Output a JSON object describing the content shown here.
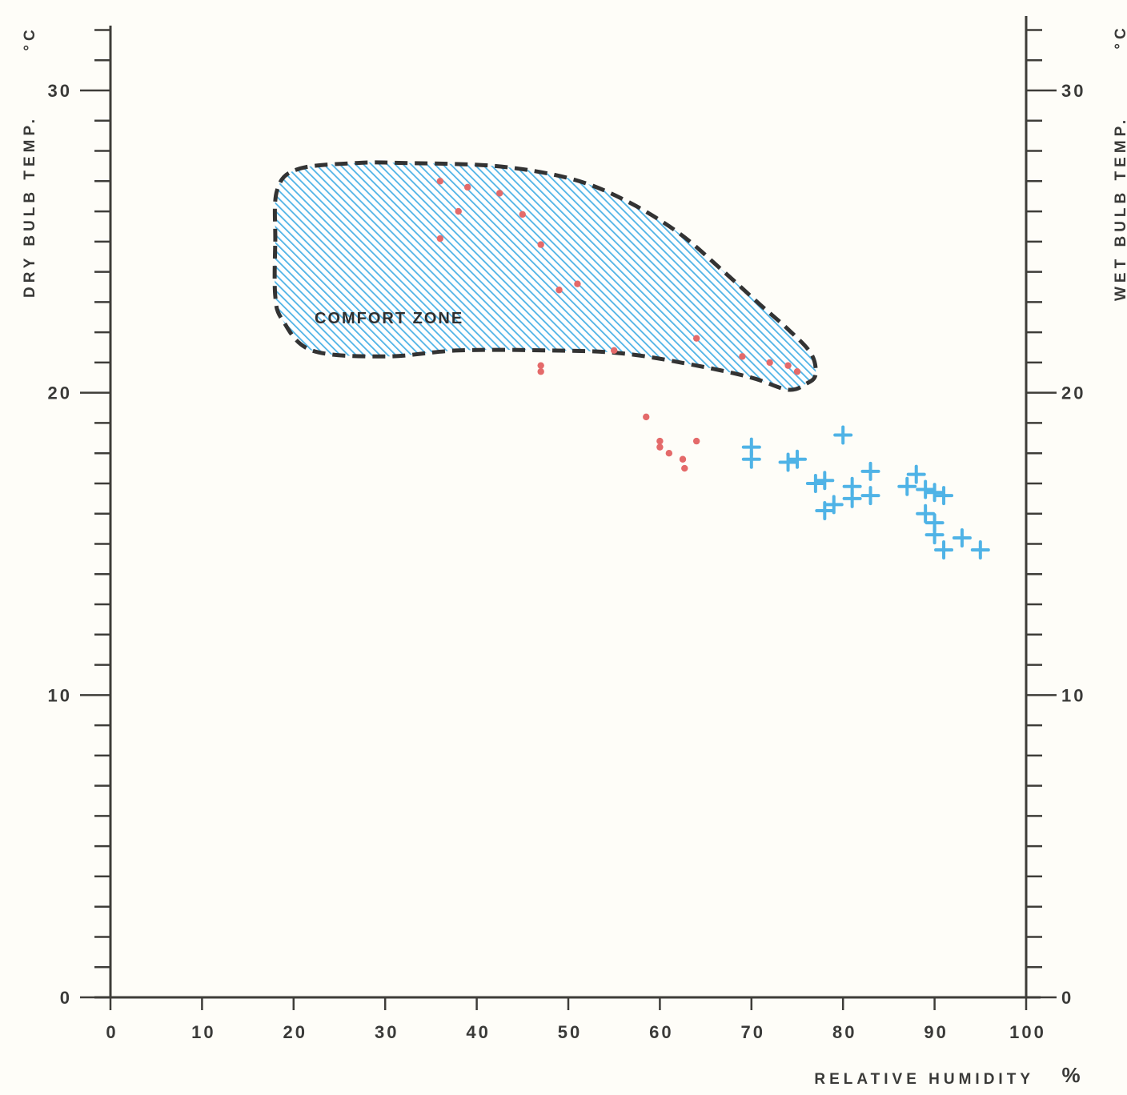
{
  "chart_data": {
    "type": "scatter",
    "title": "",
    "xlabel": "RELATIVE HUMIDITY",
    "xlabel_unit": "%",
    "ylabel_left": "DRY BULB TEMP.",
    "ylabel_left_unit": "°C",
    "ylabel_right": "WET BULB TEMP.",
    "ylabel_right_unit": "°C",
    "xlim": [
      0,
      100
    ],
    "ylim": [
      0,
      32
    ],
    "x_ticks": [
      0,
      10,
      20,
      30,
      40,
      50,
      60,
      70,
      80,
      90,
      100
    ],
    "x_tick_labels": [
      "0",
      "10",
      "20",
      "30",
      "40",
      "50",
      "60",
      "70",
      "80",
      "90",
      "100"
    ],
    "y_left_ticks": [
      0,
      10,
      20,
      30
    ],
    "y_left_tick_labels": [
      "0",
      "10",
      "20",
      "30"
    ],
    "y_right_ticks": [
      0,
      10,
      20,
      30
    ],
    "y_right_tick_labels": [
      "0",
      "10",
      "20",
      "30"
    ],
    "grid": false,
    "zone": {
      "label": "COMFORT ZONE",
      "style": "dashed outline with blue hatching",
      "boundary": [
        [
          18.0,
          25.0
        ],
        [
          18.2,
          26.7
        ],
        [
          20.5,
          27.4
        ],
        [
          27.0,
          27.6
        ],
        [
          32.0,
          27.6
        ],
        [
          42.0,
          27.5
        ],
        [
          50.0,
          27.1
        ],
        [
          56.0,
          26.4
        ],
        [
          62.0,
          25.3
        ],
        [
          67.0,
          24.0
        ],
        [
          71.0,
          22.9
        ],
        [
          74.0,
          22.1
        ],
        [
          76.5,
          21.3
        ],
        [
          77.0,
          20.6
        ],
        [
          76.0,
          20.3
        ],
        [
          74.0,
          20.1
        ],
        [
          70.0,
          20.5
        ],
        [
          64.0,
          20.9
        ],
        [
          56.0,
          21.3
        ],
        [
          48.0,
          21.4
        ],
        [
          38.0,
          21.4
        ],
        [
          30.0,
          21.2
        ],
        [
          22.0,
          21.4
        ],
        [
          18.8,
          22.4
        ],
        [
          18.0,
          23.2
        ]
      ]
    },
    "series": [
      {
        "marker": "dot",
        "color": "#e46a6a",
        "points": [
          [
            36,
            27.0
          ],
          [
            36,
            25.1
          ],
          [
            38,
            26.0
          ],
          [
            39,
            26.8
          ],
          [
            42.5,
            26.6
          ],
          [
            45,
            25.9
          ],
          [
            47,
            24.9
          ],
          [
            49,
            23.4
          ],
          [
            51,
            23.6
          ],
          [
            47,
            20.9
          ],
          [
            47,
            20.7
          ],
          [
            55,
            21.4
          ],
          [
            64,
            21.8
          ],
          [
            69,
            21.2
          ],
          [
            72,
            21.0
          ],
          [
            74,
            20.9
          ],
          [
            75,
            20.7
          ],
          [
            58.5,
            19.2
          ],
          [
            60,
            18.4
          ],
          [
            60,
            18.2
          ],
          [
            61,
            18.0
          ],
          [
            62.5,
            17.8
          ],
          [
            62.7,
            17.5
          ],
          [
            64,
            18.4
          ]
        ]
      },
      {
        "marker": "plus",
        "color": "#4fb3e6",
        "points": [
          [
            70,
            18.2
          ],
          [
            70,
            17.8
          ],
          [
            74,
            17.7
          ],
          [
            75,
            17.8
          ],
          [
            77,
            17.0
          ],
          [
            78,
            17.1
          ],
          [
            78,
            16.1
          ],
          [
            79,
            16.3
          ],
          [
            80,
            18.6
          ],
          [
            81,
            16.9
          ],
          [
            81,
            16.5
          ],
          [
            83,
            17.4
          ],
          [
            83,
            16.6
          ],
          [
            87,
            16.9
          ],
          [
            88,
            17.3
          ],
          [
            89,
            16.8
          ],
          [
            89,
            16.0
          ],
          [
            90,
            16.7
          ],
          [
            90,
            15.7
          ],
          [
            90,
            15.3
          ],
          [
            91,
            16.6
          ],
          [
            91,
            14.8
          ],
          [
            93,
            15.2
          ],
          [
            95,
            14.8
          ]
        ]
      }
    ]
  }
}
